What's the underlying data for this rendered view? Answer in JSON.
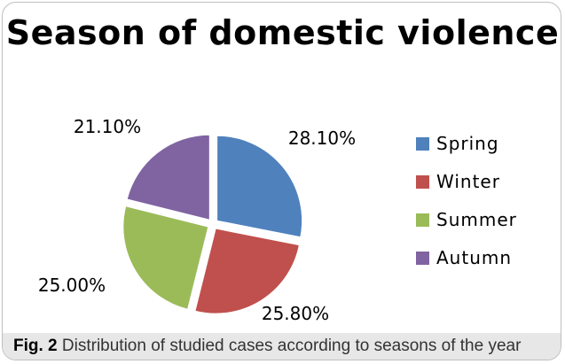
{
  "chart_data": {
    "type": "pie",
    "title": "Season of domestic violence",
    "slices": [
      {
        "label": "Spring",
        "value": 28.1,
        "display": "28.10%",
        "color": "#4f81bd"
      },
      {
        "label": "Winter",
        "value": 25.8,
        "display": "25.80%",
        "color": "#c0504d"
      },
      {
        "label": "Summer",
        "value": 25.0,
        "display": "25.00%",
        "color": "#9bbb59"
      },
      {
        "label": "Autumn",
        "value": 21.1,
        "display": "21.10%",
        "color": "#8064a2"
      }
    ],
    "legend_position": "right",
    "exploded": true
  },
  "caption": {
    "label": "Fig. 2",
    "text": "Distribution of studied cases according to seasons of the year"
  }
}
